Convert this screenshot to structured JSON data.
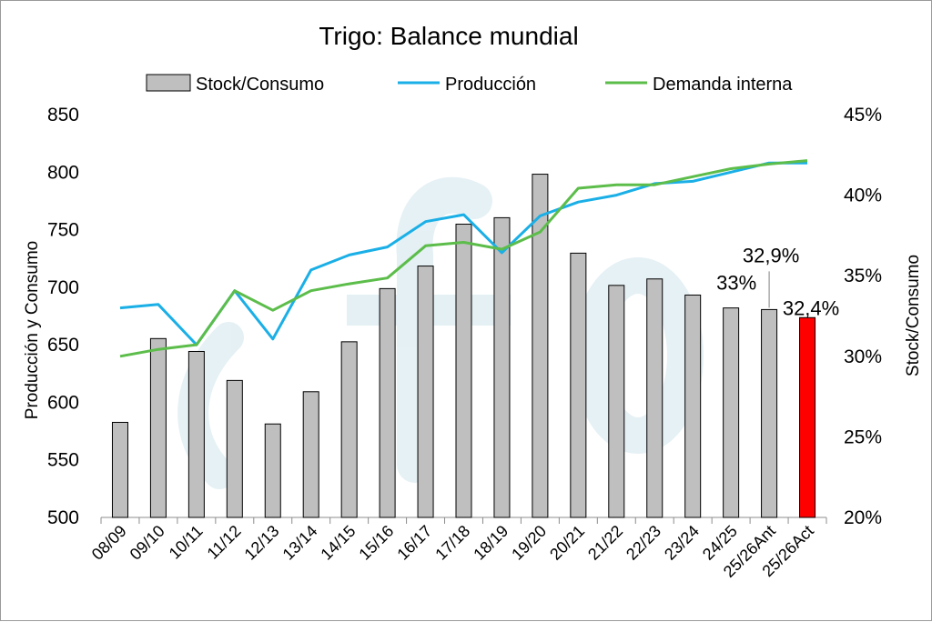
{
  "chart_data": {
    "type": "bar",
    "title": "Trigo: Balance mundial",
    "ylabel_left": "Producción y Consumo",
    "ylabel_right": "Stock/Consumo",
    "ylim_left": [
      500,
      850
    ],
    "yticks_left": [
      "500",
      "550",
      "600",
      "650",
      "700",
      "750",
      "800",
      "850"
    ],
    "ylim_right": [
      20,
      45
    ],
    "yticks_right": [
      "20%",
      "25%",
      "30%",
      "35%",
      "40%",
      "45%"
    ],
    "legend_position": "top",
    "categories": [
      "08/09",
      "09/10",
      "10/11",
      "11/12",
      "12/13",
      "13/14",
      "14/15",
      "15/16",
      "16/17",
      "17/18",
      "18/19",
      "19/20",
      "20/21",
      "21/22",
      "22/23",
      "23/24",
      "24/25",
      "25/26Ant",
      "25/26Act"
    ],
    "series": [
      {
        "name": "Stock/Consumo",
        "type": "bar",
        "axis": "right",
        "color": "#bfbfbf",
        "highlight_color": "#ff0000",
        "values": [
          25.9,
          31.1,
          30.3,
          28.5,
          25.8,
          27.8,
          30.9,
          34.2,
          35.6,
          38.2,
          38.6,
          41.3,
          36.4,
          34.4,
          34.8,
          33.8,
          33.0,
          32.9,
          32.4
        ]
      },
      {
        "name": "Producción",
        "type": "line",
        "axis": "left",
        "color": "#1aafe6",
        "values": [
          682,
          685,
          650,
          697,
          655,
          715,
          728,
          735,
          757,
          763,
          730,
          762,
          774,
          780,
          790,
          792,
          800,
          808,
          808
        ]
      },
      {
        "name": "Demanda interna",
        "type": "line",
        "axis": "left",
        "color": "#5cbd4a",
        "values": [
          640,
          646,
          650,
          697,
          680,
          697,
          703,
          708,
          736,
          739,
          733,
          748,
          786,
          789,
          789,
          796,
          803,
          807,
          810
        ]
      }
    ],
    "data_labels": [
      {
        "category": "24/25",
        "text": "33%"
      },
      {
        "category": "25/26Ant",
        "text": "32,9%"
      },
      {
        "category": "25/26Act",
        "text": "32,4%"
      }
    ],
    "watermark": "cfyo"
  }
}
